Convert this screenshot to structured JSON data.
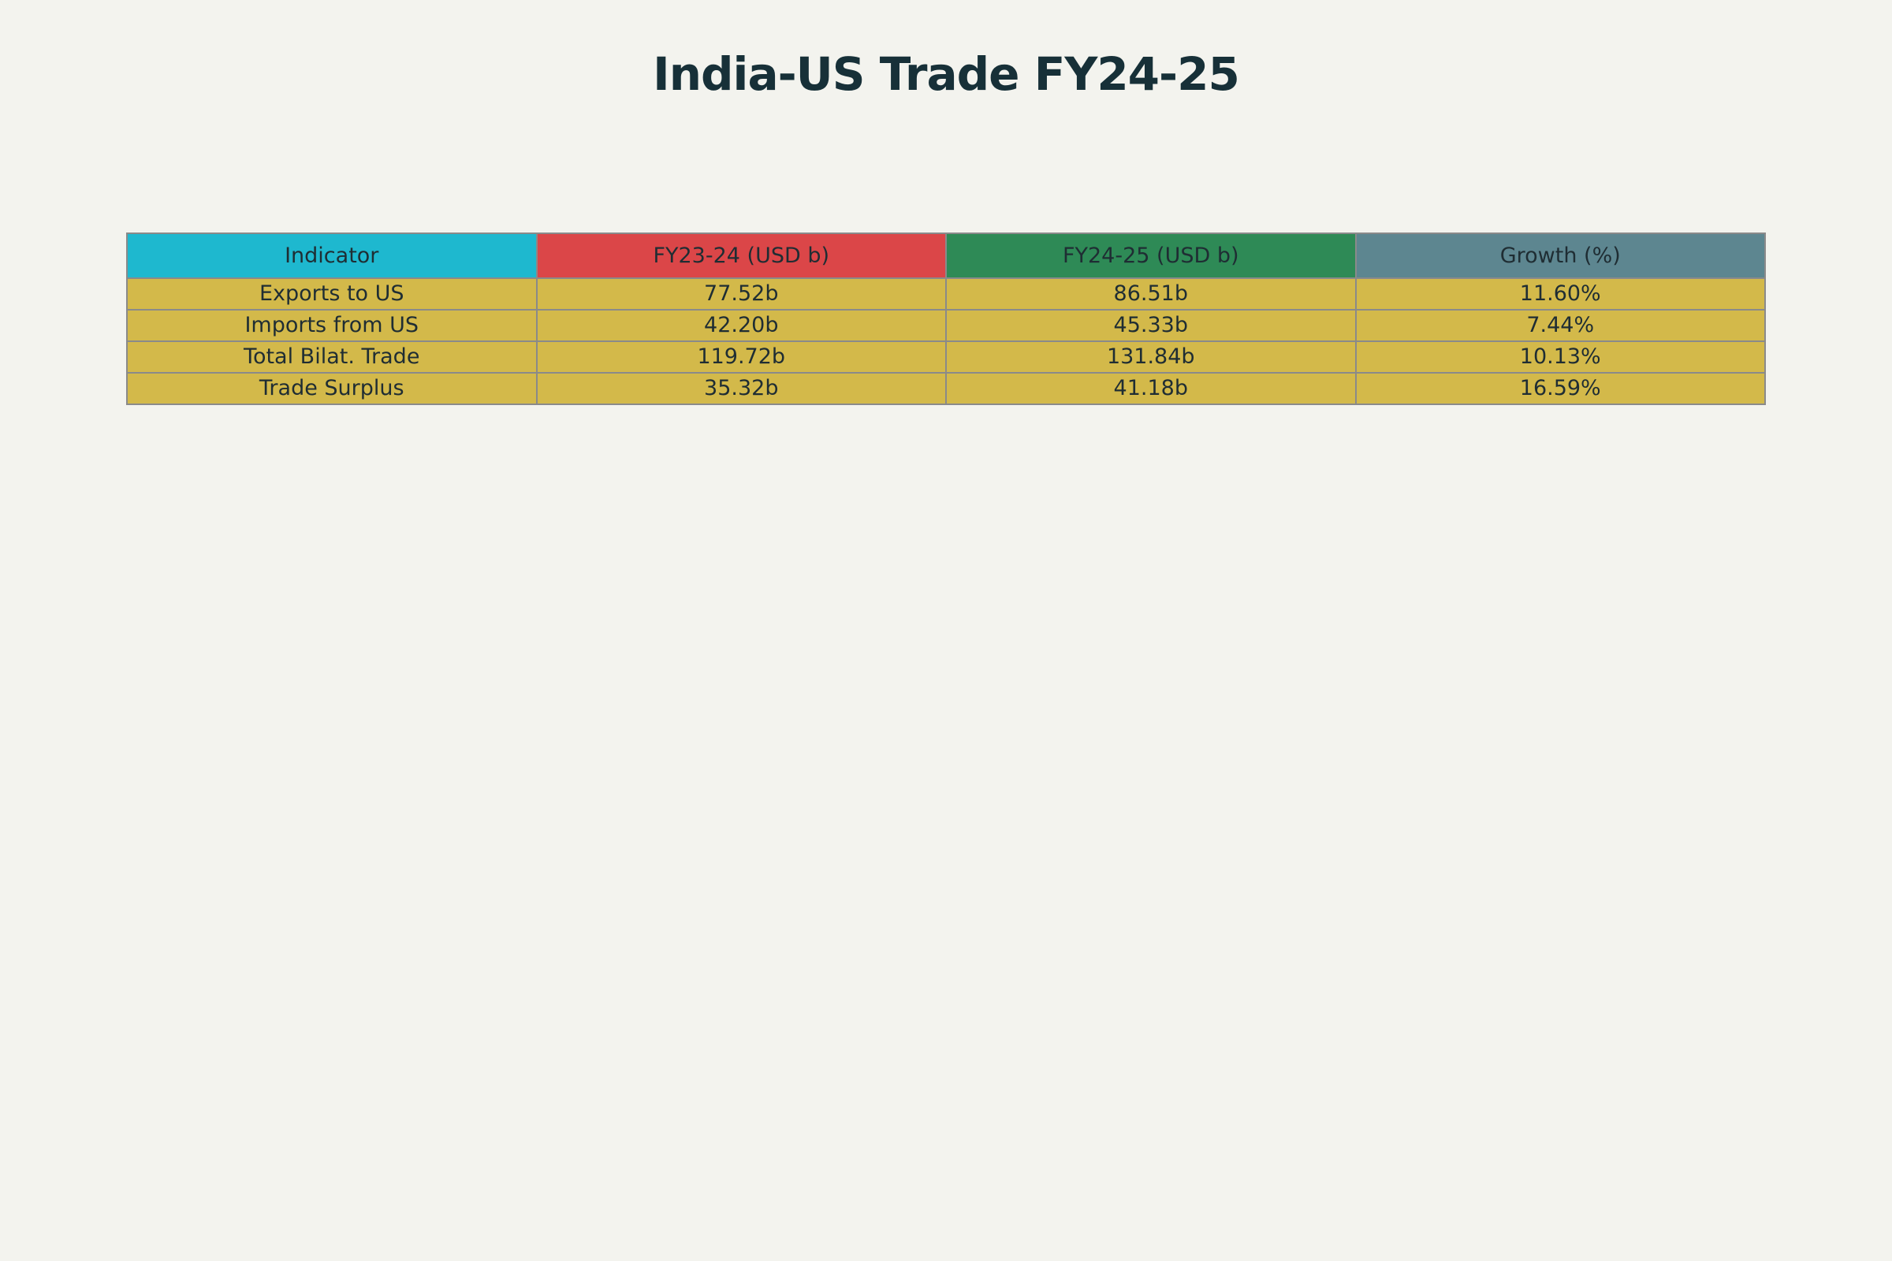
{
  "chart_data": {
    "type": "table",
    "title": "India-US Trade FY24-25",
    "columns": [
      {
        "label": "Indicator",
        "color": "#1eb8cf"
      },
      {
        "label": "FY23-24 (USD b)",
        "color": "#db4648"
      },
      {
        "label": "FY24-25 (USD b)",
        "color": "#2e8a56"
      },
      {
        "label": "Growth (%)",
        "color": "#5d8690"
      }
    ],
    "cell_color": "#d3b94a",
    "rows": [
      [
        "Exports to US",
        "77.52b",
        "86.51b",
        "11.60%"
      ],
      [
        "Imports from US",
        "42.20b",
        "45.33b",
        "7.44%"
      ],
      [
        "Total Bilat. Trade",
        "119.72b",
        "131.84b",
        "10.13%"
      ],
      [
        "Trade Surplus",
        "35.32b",
        "41.18b",
        "16.59%"
      ]
    ]
  }
}
